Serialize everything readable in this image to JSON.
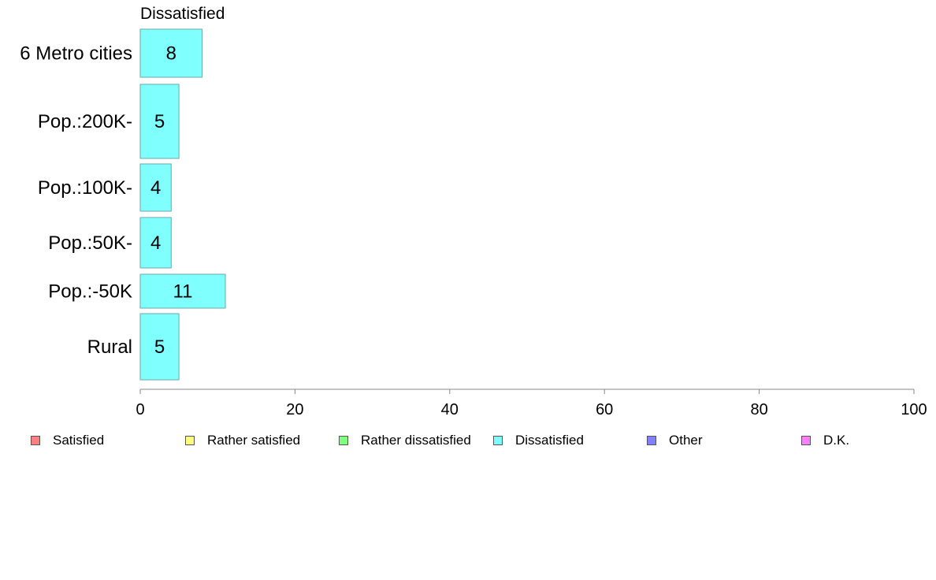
{
  "chart_data": {
    "type": "bar",
    "orientation": "horizontal",
    "title": "Dissatisfied",
    "categories": [
      "6 Metro cities",
      "Pop.:200K-",
      "Pop.:100K-",
      "Pop.:50K-",
      "Pop.:-50K",
      "Rural"
    ],
    "values": [
      8,
      5,
      4,
      4,
      11,
      5
    ],
    "value_labels": [
      "8",
      "5",
      "4",
      "4",
      "11",
      "5"
    ],
    "xlim": [
      0,
      100
    ],
    "xticks": [
      0,
      20,
      40,
      60,
      80,
      100
    ],
    "xtick_labels": [
      "0",
      "20",
      "40",
      "60",
      "80",
      "100"
    ],
    "series_color": "#80ffff",
    "grid": false,
    "legend": {
      "placement": "bottom",
      "entries": [
        {
          "label": "Satisfied",
          "color": "#ff8080"
        },
        {
          "label": "Rather satisfied",
          "color": "#ffff80"
        },
        {
          "label": "Rather dissatisfied",
          "color": "#80ff80"
        },
        {
          "label": "Dissatisfied",
          "color": "#80ffff"
        },
        {
          "label": "Other",
          "color": "#8080ff"
        },
        {
          "label": "D.K.",
          "color": "#ff80ff"
        }
      ]
    }
  }
}
